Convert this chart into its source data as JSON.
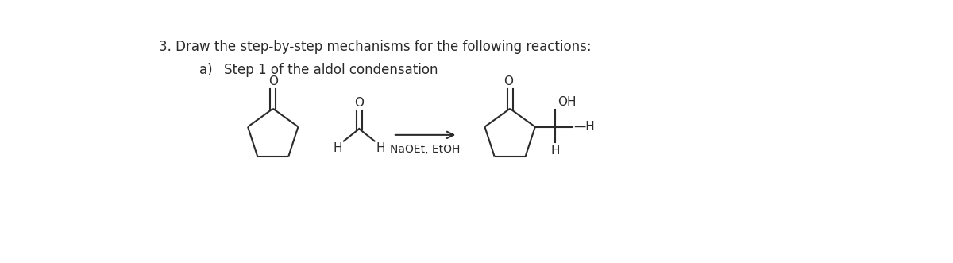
{
  "title": "3. Draw the step-by-step mechanisms for the following reactions:",
  "subtitle_a": "a)",
  "subtitle_b": "Step 1 of the aldol condensation",
  "reagent": "NaOEt, EtOH",
  "background_color": "#ffffff",
  "line_color": "#2a2a2a",
  "text_color": "#2a2a2a",
  "title_fontsize": 12,
  "label_fontsize": 12,
  "chem_fontsize": 11,
  "fig_width": 12.0,
  "fig_height": 3.31
}
